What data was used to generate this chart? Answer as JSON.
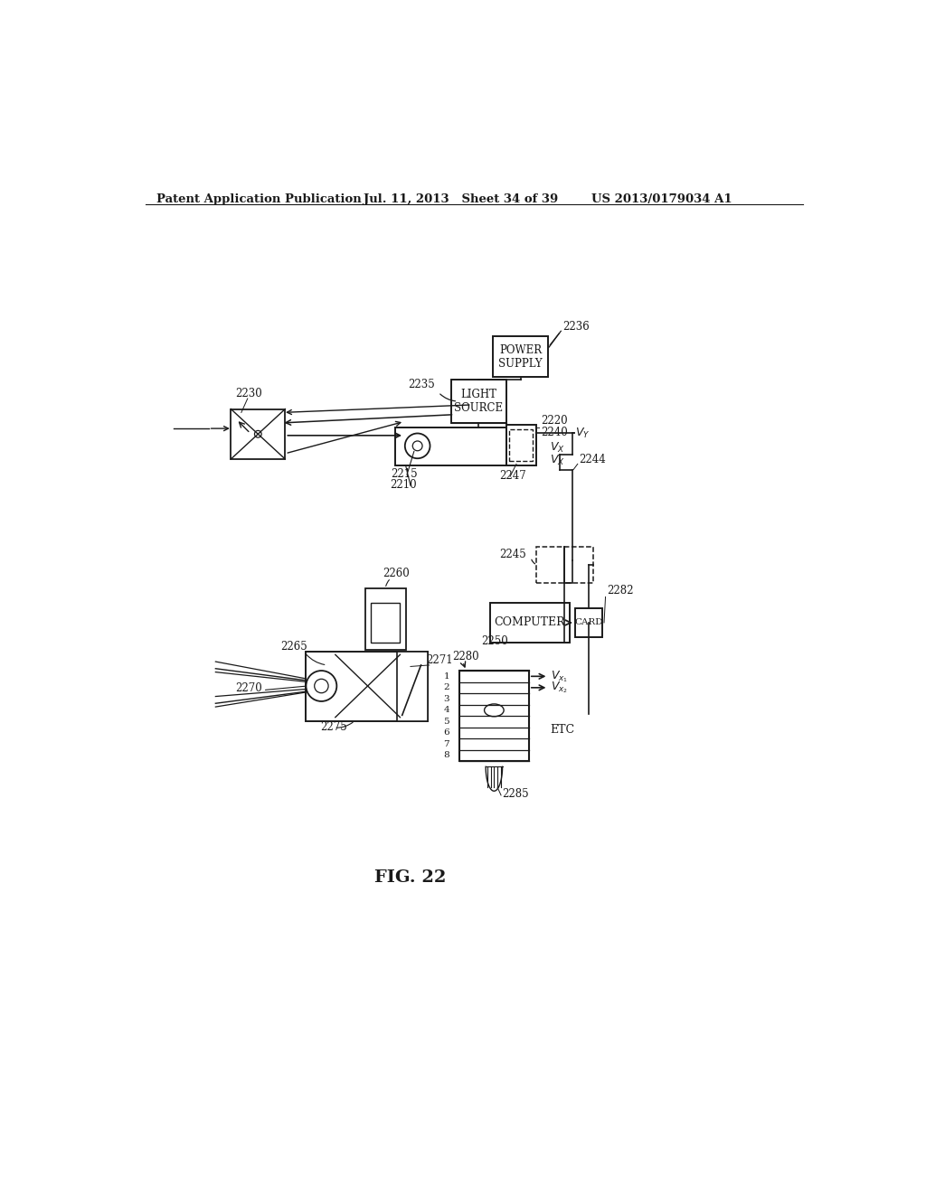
{
  "bg_color": "#ffffff",
  "header_left": "Patent Application Publication",
  "header_mid": "Jul. 11, 2013   Sheet 34 of 39",
  "header_right": "US 2013/0179034 A1",
  "fig_label": "FIG. 22",
  "line_color": "#1a1a1a",
  "text_color": "#1a1a1a"
}
